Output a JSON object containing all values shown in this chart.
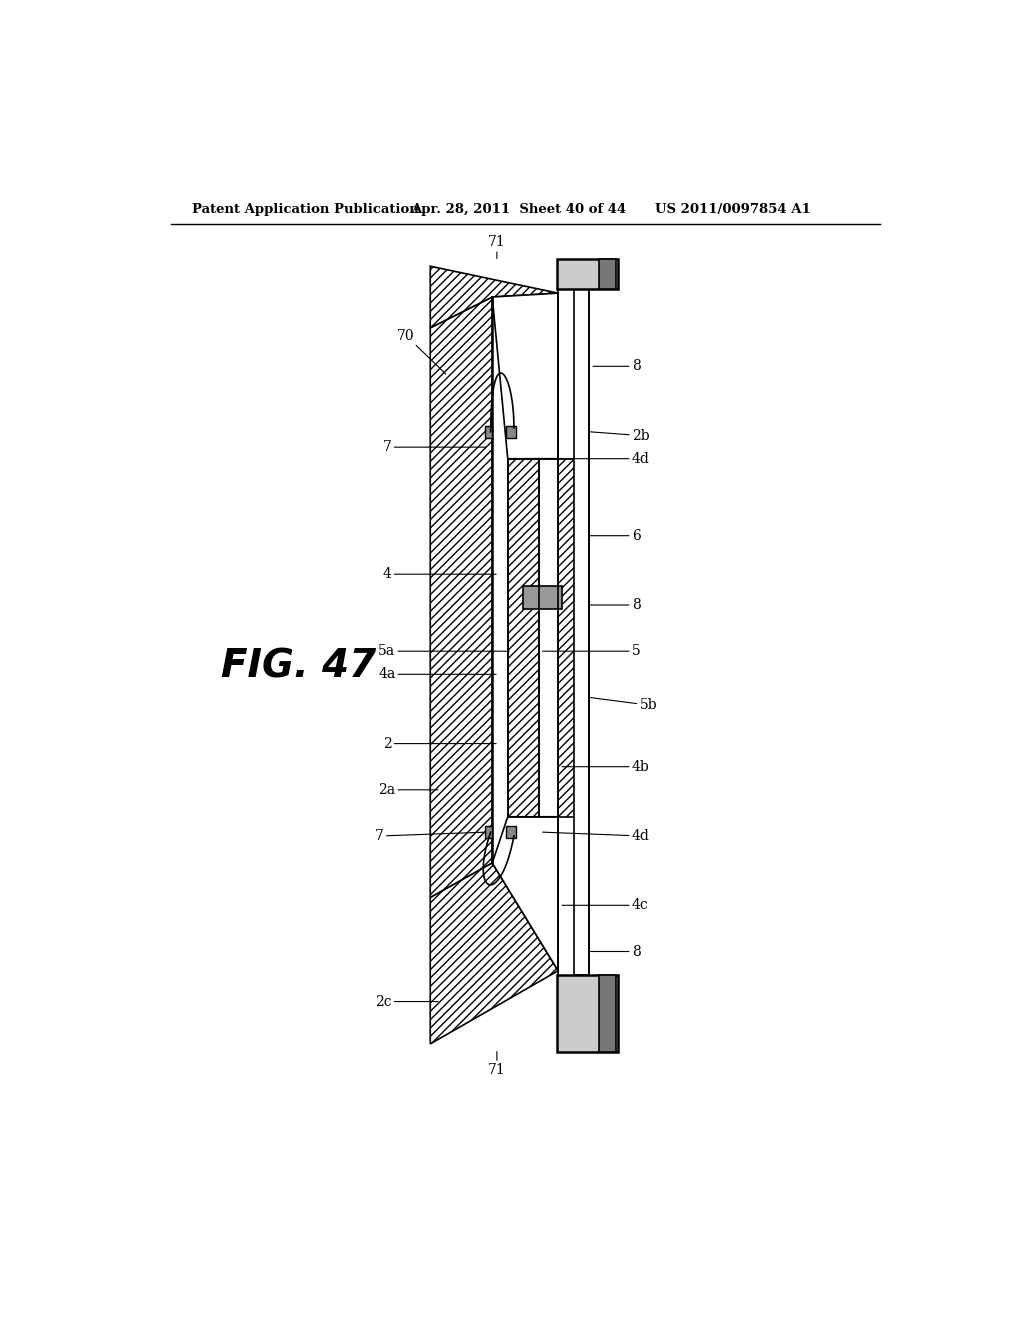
{
  "bg_color": "#ffffff",
  "header_left": "Patent Application Publication",
  "header_mid": "Apr. 28, 2011  Sheet 40 of 44",
  "header_right": "US 2011/0097854 A1",
  "fig_label": "FIG. 47"
}
